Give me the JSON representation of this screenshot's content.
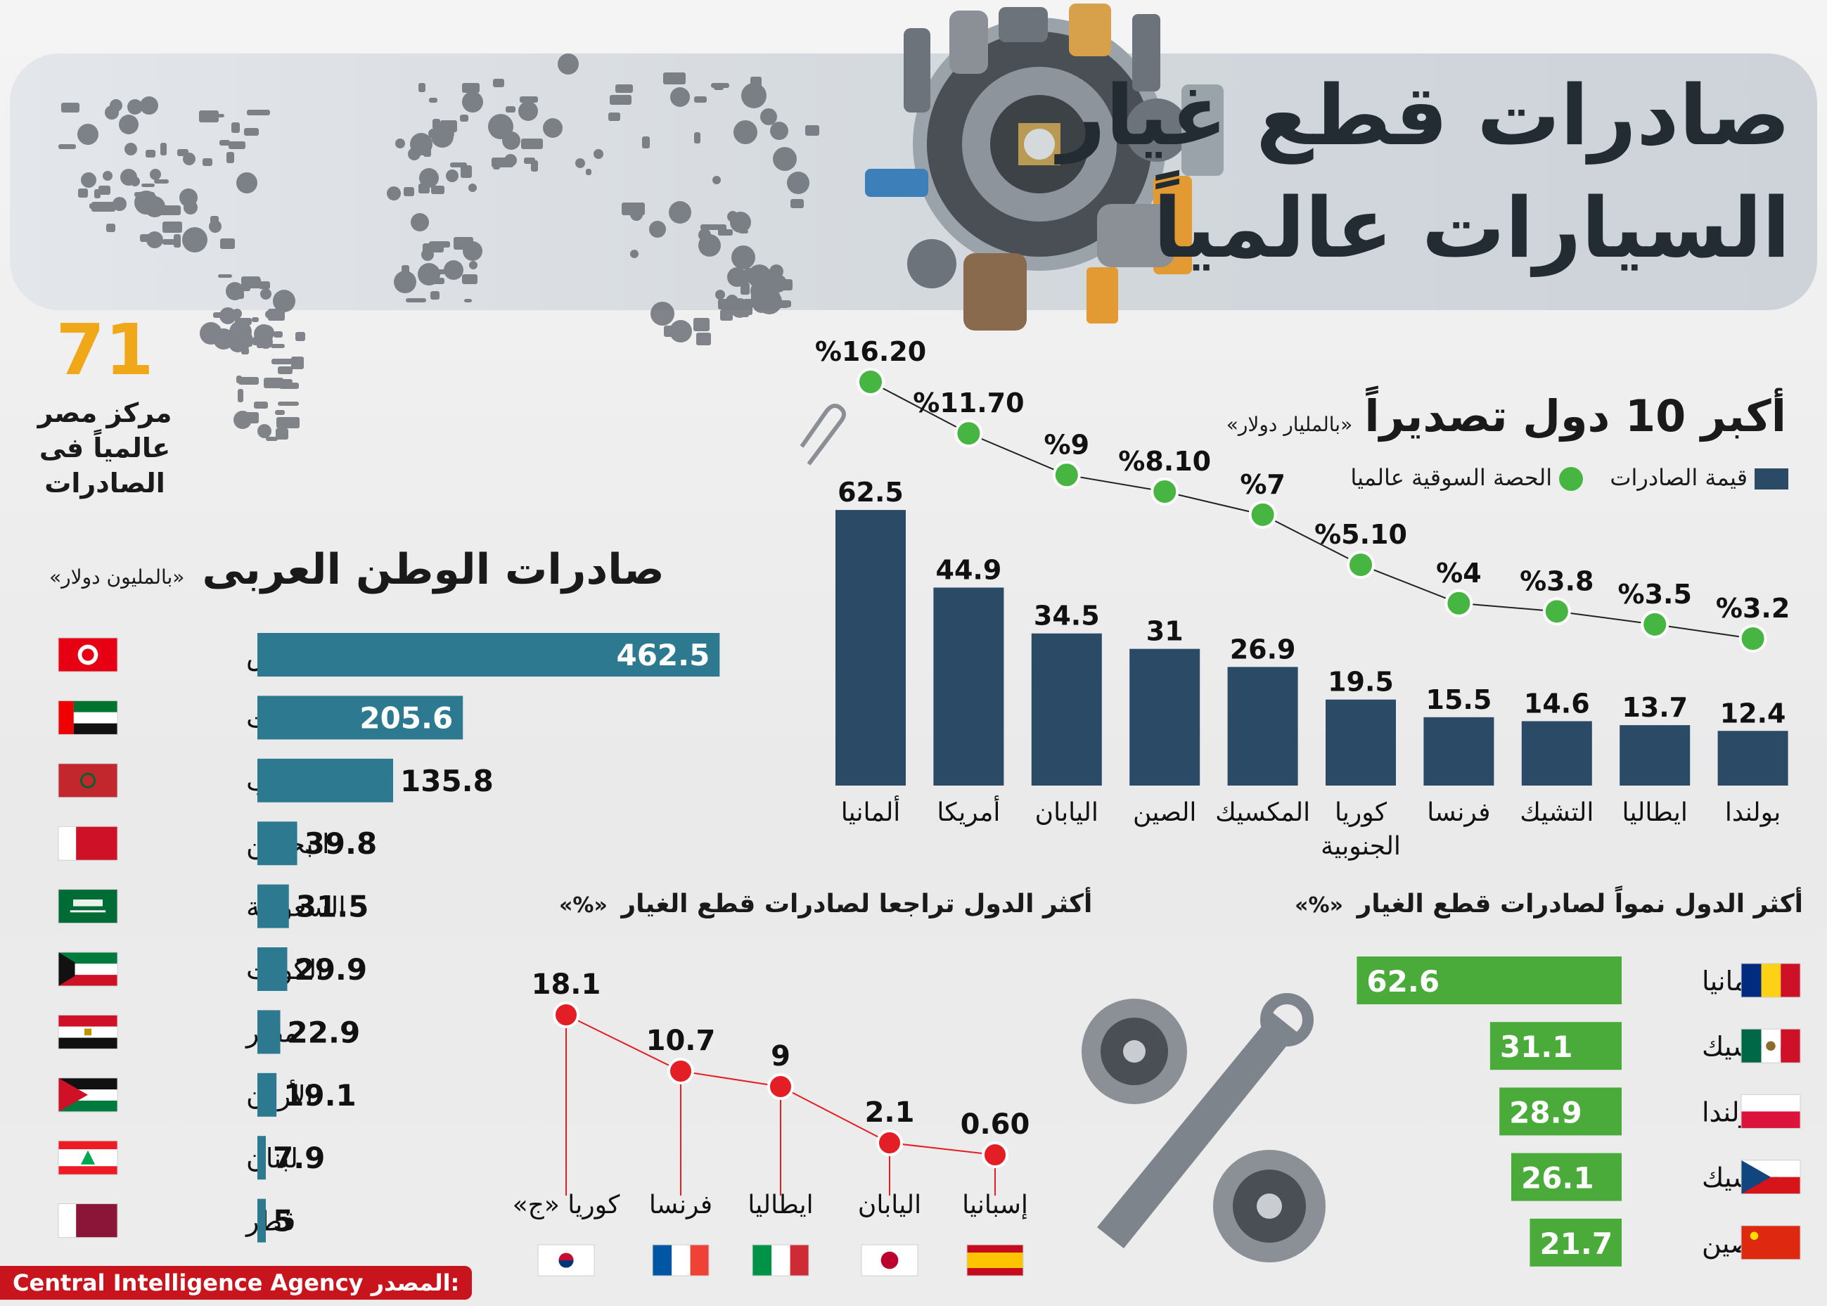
{
  "title": {
    "line1": "صادرات قطع غيار",
    "line2": "السيارات عالمياً"
  },
  "rank_callout": {
    "number": "71",
    "line1": "مركز مصر",
    "line2": "عالمياً فى",
    "line3": "الصادرات"
  },
  "top10": {
    "title": "أكبر 10 دول تصديراً",
    "unit": "«بالمليار دولار»",
    "legend_value": "قيمة الصادرات",
    "legend_share": "الحصة السوقية عالميا"
  },
  "arab": {
    "title": "صادرات الوطن العربى",
    "unit": "«بالمليون دولار»"
  },
  "decline": {
    "title": "أكثر الدول تراجعا لصادرات قطع الغيار",
    "unit": "«%»"
  },
  "growth": {
    "title": "أكثر الدول نمواً  لصادرات قطع الغيار",
    "unit": "«%»"
  },
  "source": {
    "label": "المصدر:",
    "value": "Central Intelligence Agency"
  },
  "colors": {
    "top10_bar": "#2b4a66",
    "share_dot": "#47b541",
    "arab_bar": "#2d7a90",
    "growth_bar": "#4aab3a",
    "decline_dot": "#e31e24",
    "title": "#232b33",
    "source_bg": "#c8141c"
  },
  "chart_data": [
    {
      "type": "bar",
      "id": "top10",
      "title": "أكبر 10 دول تصديراً",
      "ylabel": "«بالمليار دولار»",
      "categories": [
        "ألمانيا",
        "أمريكا",
        "اليابان",
        "الصين",
        "المكسيك",
        "كوريا الجنوبية",
        "فرنسا",
        "التشيك",
        "ايطاليا",
        "بولندا"
      ],
      "category_lines": [
        [
          "ألمانيا"
        ],
        [
          "أمريكا"
        ],
        [
          "اليابان"
        ],
        [
          "الصين"
        ],
        [
          "المكسيك"
        ],
        [
          "كوريا",
          "الجنوبية"
        ],
        [
          "فرنسا"
        ],
        [
          "التشيك"
        ],
        [
          "ايطاليا"
        ],
        [
          "بولندا"
        ]
      ],
      "series": [
        {
          "name": "قيمة الصادرات",
          "type": "bar",
          "values": [
            62.5,
            44.9,
            34.5,
            31,
            26.9,
            19.5,
            15.5,
            14.6,
            13.7,
            12.4
          ],
          "labels": [
            "62.5",
            "44.9",
            "34.5",
            "31",
            "26.9",
            "19.5",
            "15.5",
            "14.6",
            "13.7",
            "12.4"
          ]
        },
        {
          "name": "الحصة السوقية عالميا",
          "type": "line",
          "values": [
            16.2,
            11.7,
            9,
            8.1,
            7,
            5.1,
            4,
            3.8,
            3.5,
            3.2
          ],
          "labels": [
            "%16.20",
            "%11.70",
            "%9",
            "%8.10",
            "%7",
            "%5.10",
            "%4",
            "%3.8",
            "%3.5",
            "%3.2"
          ]
        }
      ],
      "ylim": [
        0,
        70
      ]
    },
    {
      "type": "bar",
      "id": "arab",
      "orientation": "horizontal",
      "title": "صادرات الوطن العربى",
      "xlabel": "«بالمليون دولار»",
      "categories": [
        "تونس",
        "الإمارات",
        "المغرب",
        "البحرين",
        "السعودية",
        "الكويت",
        "مصر",
        "الأردن",
        "لبنان",
        "قطر"
      ],
      "values": [
        462.5,
        205.6,
        135.8,
        39.8,
        31.5,
        29.9,
        22.9,
        19.1,
        7.9,
        5
      ],
      "labels": [
        "462.5",
        "205.6",
        "135.8",
        "39.8",
        "31.5",
        "29.9",
        "22.9",
        "19.1",
        "7.9",
        "5"
      ],
      "flags": [
        "tunisia",
        "uae",
        "morocco",
        "bahrain",
        "saudi",
        "kuwait",
        "egypt",
        "jordan",
        "lebanon",
        "qatar"
      ],
      "xlim": [
        0,
        470
      ]
    },
    {
      "type": "line",
      "id": "decline",
      "title": "أكثر الدول تراجعا لصادرات قطع الغيار",
      "ylabel": "«%»",
      "categories": [
        "كوريا «ج»",
        "فرنسا",
        "ايطاليا",
        "اليابان",
        "إسبانيا"
      ],
      "values": [
        18.1,
        10.7,
        9,
        2.1,
        0.6
      ],
      "labels": [
        "18.1",
        "10.7",
        "9",
        "2.1",
        "0.60"
      ],
      "flags": [
        "korea",
        "france",
        "italy",
        "japan",
        "spain"
      ],
      "ylim": [
        0,
        20
      ]
    },
    {
      "type": "bar",
      "id": "growth",
      "orientation": "horizontal",
      "title": "أكثر الدول نمواً  لصادرات قطع الغيار",
      "xlabel": "«%»",
      "categories": [
        "رومانيا",
        "المكسيك",
        "بولندا",
        "التشيك",
        "الصين"
      ],
      "values": [
        62.6,
        31.1,
        28.9,
        26.1,
        21.7
      ],
      "labels": [
        "62.6",
        "31.1",
        "28.9",
        "26.1",
        "21.7"
      ],
      "flags": [
        "romania",
        "mexico",
        "poland",
        "czech",
        "china"
      ],
      "xlim": [
        0,
        64
      ]
    }
  ]
}
